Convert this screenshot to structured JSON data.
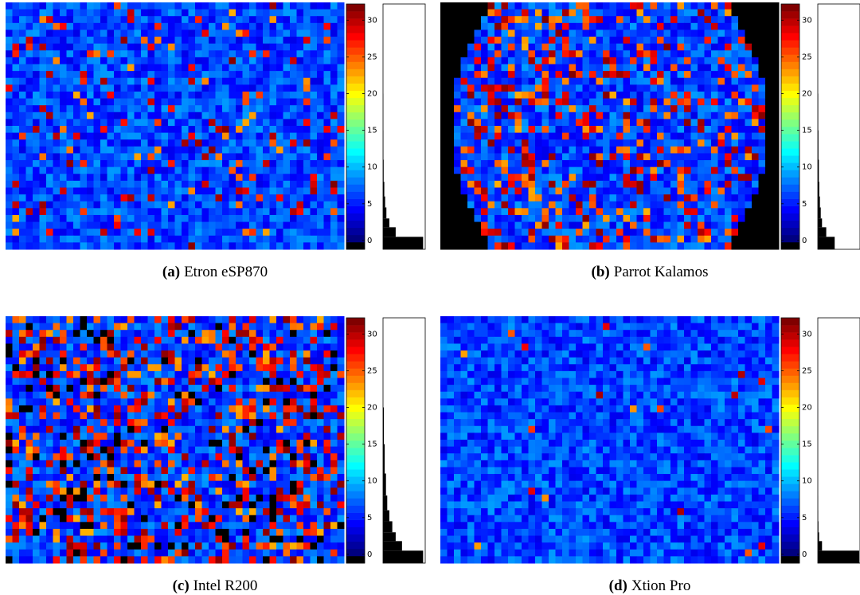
{
  "panels": [
    {
      "label": "(a)",
      "name": "Etron eSP870",
      "colorbar": {
        "lim": [
          -1.2,
          32.2
        ],
        "ticks": [
          0,
          5,
          10,
          15,
          20,
          25,
          30
        ]
      },
      "histogram": {
        "bins": [
          -1.2,
          0.5,
          1.8,
          3,
          4.5,
          6,
          8,
          11,
          15,
          20
        ],
        "counts": [
          0.95,
          0.3,
          0.15,
          0.08,
          0.05,
          0.03,
          0.015,
          0.008,
          0.004
        ],
        "xlim": [
          0,
          1
        ]
      }
    },
    {
      "label": "(b)",
      "name": "Parrot Kalamos",
      "colorbar": {
        "lim": [
          -1.2,
          32.2
        ],
        "ticks": [
          0,
          5,
          10,
          15,
          20,
          25,
          30
        ]
      },
      "histogram": {
        "bins": [
          -1.2,
          0.5,
          1.8,
          3,
          4.5,
          6,
          8,
          11,
          15,
          20
        ],
        "counts": [
          0.4,
          0.2,
          0.1,
          0.07,
          0.05,
          0.035,
          0.025,
          0.015,
          0.01
        ],
        "xlim": [
          0,
          1
        ]
      }
    },
    {
      "label": "(c)",
      "name": "Intel R200",
      "colorbar": {
        "lim": [
          -1.2,
          32.2
        ],
        "ticks": [
          0,
          5,
          10,
          15,
          20,
          25,
          30
        ]
      },
      "histogram": {
        "bins": [
          -1.2,
          0.5,
          1.8,
          3,
          4.5,
          6,
          8,
          11,
          15,
          20
        ],
        "counts": [
          0.95,
          0.45,
          0.3,
          0.22,
          0.15,
          0.1,
          0.07,
          0.04,
          0.02
        ],
        "xlim": [
          0,
          1
        ]
      }
    },
    {
      "label": "(d)",
      "name": "Xtion Pro",
      "colorbar": {
        "lim": [
          -1.2,
          32.2
        ],
        "ticks": [
          0,
          5,
          10,
          15,
          20,
          25,
          30
        ]
      },
      "histogram": {
        "bins": [
          -1.2,
          0.5,
          1.8,
          3,
          4.5,
          6,
          8,
          11,
          15,
          20
        ],
        "counts": [
          0.98,
          0.1,
          0.03,
          0.015,
          0.008,
          0.004,
          0.002,
          0.001,
          0.001
        ],
        "xlim": [
          0,
          1
        ]
      }
    }
  ]
}
